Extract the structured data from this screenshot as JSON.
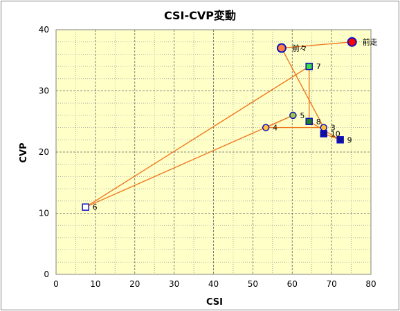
{
  "chart_data": {
    "type": "scatter",
    "title": "CSI-CVP変動",
    "xlabel": "CSI",
    "ylabel": "CVP",
    "xlim": [
      0,
      80
    ],
    "ylim": [
      0,
      40
    ],
    "x_ticks": [
      0,
      10,
      20,
      30,
      40,
      50,
      60,
      70,
      80
    ],
    "y_ticks": [
      0,
      10,
      20,
      30,
      40
    ],
    "grid": true,
    "plot_background": "#ffffc8",
    "line_color": "#f07820",
    "path_order": [
      "前走",
      "前々",
      "3",
      "4",
      "5",
      "6",
      "7",
      "8",
      "9",
      "10"
    ],
    "points": [
      {
        "label": "前走",
        "x": 75.2,
        "y": 38.0,
        "shape": "circle",
        "fill": "#ff0000",
        "stroke": "#1010c0"
      },
      {
        "label": "前々",
        "x": 57.3,
        "y": 37.0,
        "shape": "circle",
        "fill": "#ff8040",
        "stroke": "#1010c0"
      },
      {
        "label": "3",
        "x": 68.0,
        "y": 24.0,
        "shape": "circle",
        "fill": "#ffc040",
        "stroke": "#1010c0"
      },
      {
        "label": "4",
        "x": 53.3,
        "y": 24.0,
        "shape": "circle",
        "fill": "#ffc040",
        "stroke": "#1010c0"
      },
      {
        "label": "5",
        "x": 60.2,
        "y": 26.0,
        "shape": "circle",
        "fill": "#a0c840",
        "stroke": "#1010c0"
      },
      {
        "label": "6",
        "x": 7.5,
        "y": 11.0,
        "shape": "square",
        "fill": "#ffffff",
        "stroke": "#1010c0"
      },
      {
        "label": "7",
        "x": 64.3,
        "y": 34.0,
        "shape": "square",
        "fill": "#40e040",
        "stroke": "#1010c0"
      },
      {
        "label": "8",
        "x": 64.3,
        "y": 25.0,
        "shape": "square",
        "fill": "#208020",
        "stroke": "#1010c0"
      },
      {
        "label": "9",
        "x": 72.2,
        "y": 22.0,
        "shape": "square",
        "fill": "#1010a0",
        "stroke": "#1010c0"
      },
      {
        "label": "10",
        "x": 68.0,
        "y": 23.0,
        "shape": "square",
        "fill": "#1010a0",
        "stroke": "#1010c0"
      }
    ]
  }
}
